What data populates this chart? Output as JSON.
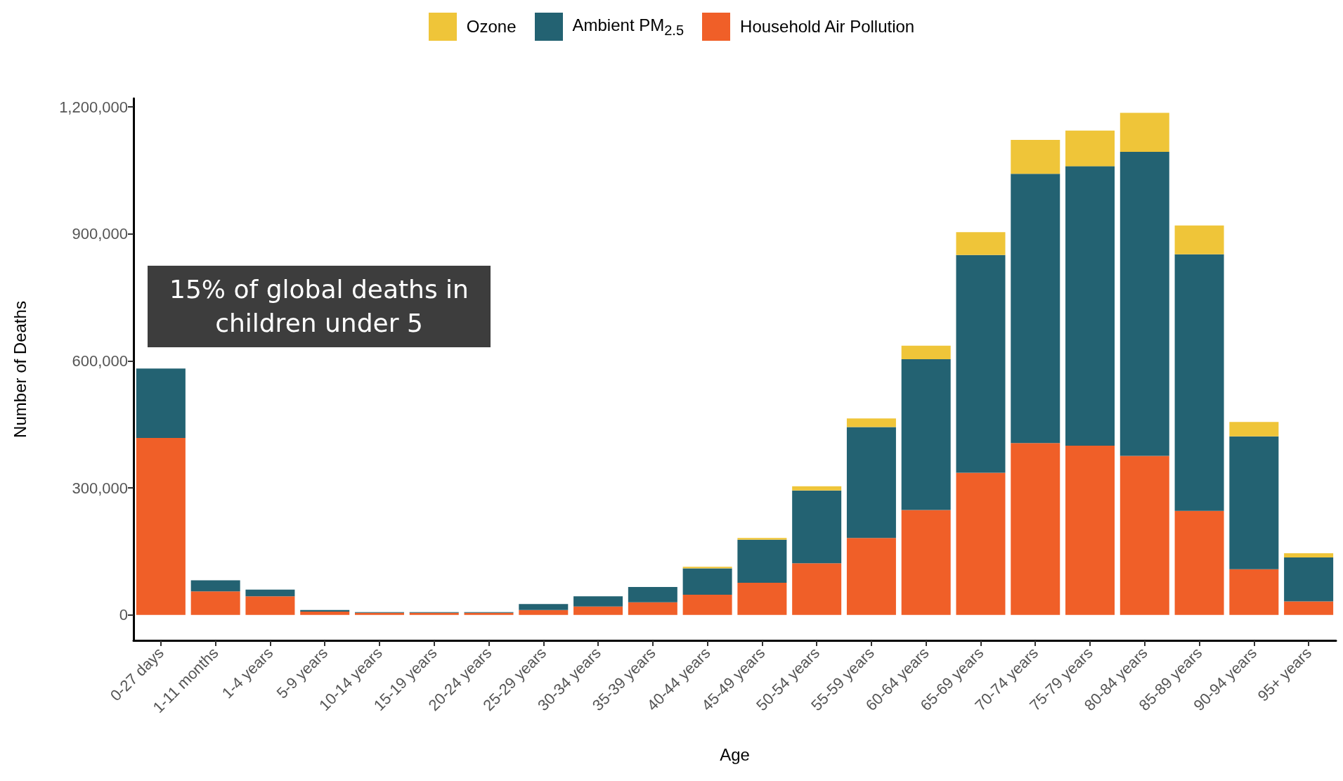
{
  "chart_data": {
    "type": "bar",
    "stacked": true,
    "xlabel": "Age",
    "ylabel": "Number of Deaths",
    "categories": [
      "0-27 days",
      "1-11 months",
      "1-4 years",
      "5-9 years",
      "10-14 years",
      "15-19 years",
      "20-24 years",
      "25-29 years",
      "30-34 years",
      "35-39 years",
      "40-44 years",
      "45-49 years",
      "50-54 years",
      "55-59 years",
      "60-64 years",
      "65-69 years",
      "70-74 years",
      "75-79 years",
      "80-84 years",
      "85-89 years",
      "90-94 years",
      "95+ years"
    ],
    "series": [
      {
        "name": "Household Air Pollution",
        "color": "#f05f28",
        "values": [
          418000,
          56000,
          44000,
          8000,
          5000,
          5000,
          5000,
          12000,
          20000,
          30000,
          48000,
          76000,
          122000,
          182000,
          248000,
          336000,
          406000,
          400000,
          376000,
          246000,
          108000,
          32000
        ]
      },
      {
        "name": "Ambient PM$_{2.5}$",
        "color": "#236272",
        "values": [
          164000,
          26000,
          16000,
          4000,
          2000,
          2000,
          2000,
          14000,
          24000,
          36000,
          62000,
          102000,
          172000,
          262000,
          356000,
          514000,
          636000,
          660000,
          718000,
          606000,
          314000,
          104000
        ]
      },
      {
        "name": "Ozone",
        "color": "#efc539",
        "values": [
          null,
          null,
          null,
          null,
          null,
          null,
          null,
          null,
          null,
          null,
          4000,
          4000,
          10000,
          20000,
          32000,
          54000,
          80000,
          84000,
          92000,
          68000,
          34000,
          10000
        ]
      }
    ],
    "ylim": [
      -60000,
      1220000
    ],
    "yticks": [
      {
        "value": 0,
        "label": "0"
      },
      {
        "value": 300000,
        "label": "300,000"
      },
      {
        "value": 600000,
        "label": "600,000"
      },
      {
        "value": 900000,
        "label": "900,000"
      },
      {
        "value": 1200000,
        "label": "1,200,000"
      }
    ],
    "grid": false,
    "legend": "top",
    "annotations": [
      "15% of global deaths in children under 5"
    ]
  }
}
